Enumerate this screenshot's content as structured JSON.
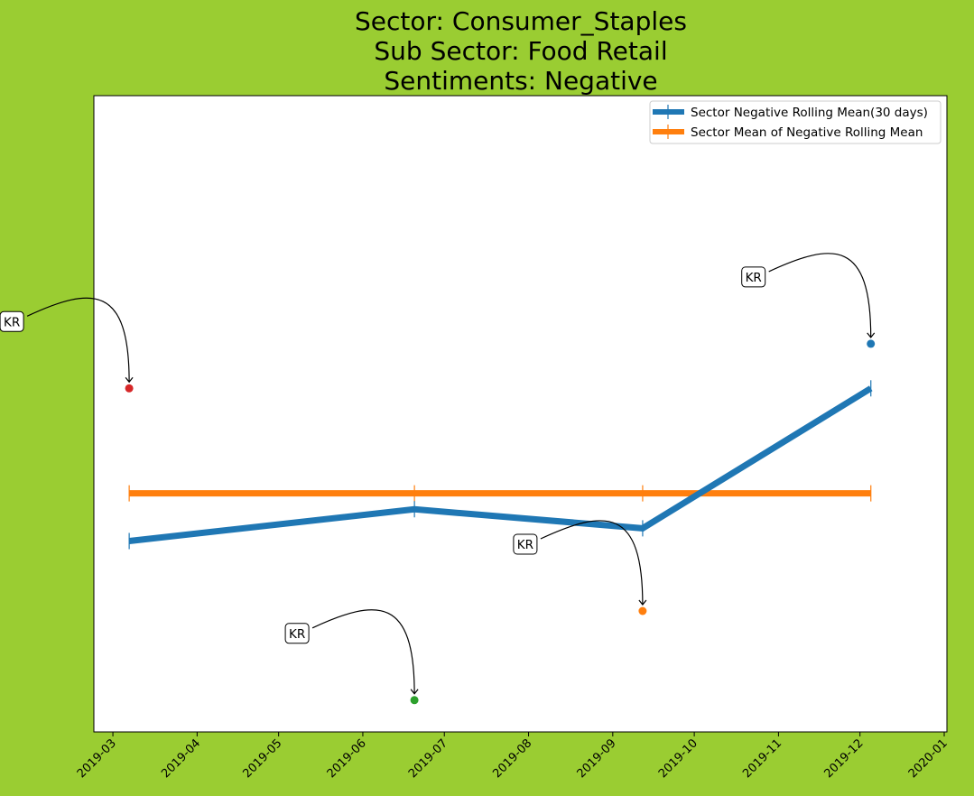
{
  "chart_data": {
    "type": "line",
    "title_lines": [
      "Sector:  Consumer_Staples",
      "Sub Sector:  Food Retail",
      "Sentiments:  Negative"
    ],
    "xlabel": "",
    "ylabel": "",
    "x_ticks": [
      "2019-03",
      "2019-04",
      "2019-05",
      "2019-06",
      "2019-07",
      "2019-08",
      "2019-09",
      "2019-10",
      "2019-11",
      "2019-12",
      "2020-01"
    ],
    "xlim": [
      "2019-02-22",
      "2020-01-02"
    ],
    "ylim": [
      0,
      1
    ],
    "grid": false,
    "legend_position": "top-right",
    "series": [
      {
        "name": "Sector Negative Rolling Mean(30 days)",
        "color": "#1f77b4",
        "x": [
          "2019-03-07",
          "2019-06-20",
          "2019-09-12",
          "2019-12-05"
        ],
        "y": [
          0.3,
          0.35,
          0.32,
          0.54
        ]
      },
      {
        "name": "Sector Mean of Negative Rolling Mean",
        "color": "#ff7f0e",
        "x": [
          "2019-03-07",
          "2019-06-20",
          "2019-09-12",
          "2019-12-05"
        ],
        "y": [
          0.375,
          0.375,
          0.375,
          0.375
        ]
      }
    ],
    "points": [
      {
        "label": "KR",
        "x": "2019-03-07",
        "y": 0.54,
        "color": "#d62728"
      },
      {
        "label": "KR",
        "x": "2019-06-20",
        "y": 0.05,
        "color": "#2ca02c"
      },
      {
        "label": "KR",
        "x": "2019-09-12",
        "y": 0.19,
        "color": "#ff7f0e"
      },
      {
        "label": "KR",
        "x": "2019-12-05",
        "y": 0.61,
        "color": "#1f77b4"
      }
    ]
  }
}
